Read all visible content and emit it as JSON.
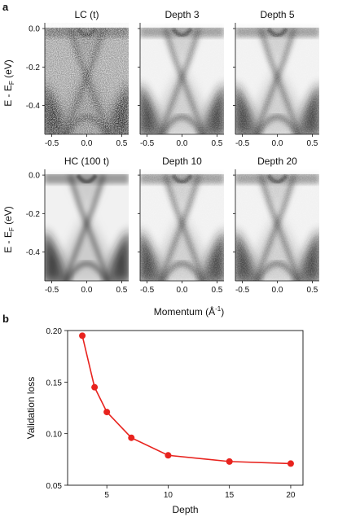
{
  "figure": {
    "panel_a_letter": "a",
    "panel_b_letter": "b",
    "shared_xlabel_main": "Momentum (Å",
    "shared_xlabel_sup": "-1",
    "shared_xlabel_end": ")",
    "ylabel_main": "E - E",
    "ylabel_sub": "F",
    "ylabel_unit": " (eV)"
  },
  "chart_data": [
    {
      "type": "heatmap",
      "panels": [
        {
          "title": "LC (t)",
          "noise": "high"
        },
        {
          "title": "Depth 3",
          "noise": "low"
        },
        {
          "title": "Depth 5",
          "noise": "low"
        },
        {
          "title": "HC (100 t)",
          "noise": "none"
        },
        {
          "title": "Depth 10",
          "noise": "low"
        },
        {
          "title": "Depth 20",
          "noise": "low"
        }
      ],
      "xlabel": "Momentum (Å^-1)",
      "ylabel": "E - E_F (eV)",
      "xlim": [
        -0.6,
        0.6
      ],
      "ylim": [
        -0.55,
        0.03
      ],
      "xticks": [
        -0.5,
        0.0,
        0.5
      ],
      "xtick_labels": [
        "-0.5",
        "0.0",
        "0.5"
      ],
      "yticks": [
        0.0,
        -0.2,
        -0.4
      ],
      "ytick_labels": [
        "0.0",
        "-0.2",
        "-0.4"
      ],
      "colormap": "grayscale"
    },
    {
      "type": "line",
      "x": [
        3,
        4,
        5,
        7,
        10,
        15,
        20
      ],
      "series": [
        {
          "values": [
            0.195,
            0.145,
            0.121,
            0.096,
            0.079,
            0.073,
            0.071
          ],
          "color": "#e8231e"
        }
      ],
      "xlabel": "Depth",
      "ylabel": "Validation loss",
      "xlim": [
        1.8,
        21
      ],
      "ylim": [
        0.05,
        0.2
      ],
      "xticks": [
        5,
        10,
        15,
        20
      ],
      "xtick_labels": [
        "5",
        "10",
        "15",
        "20"
      ],
      "yticks": [
        0.05,
        0.1,
        0.15,
        0.2
      ],
      "ytick_labels": [
        "0.05",
        "0.10",
        "0.15",
        "0.20"
      ],
      "grid": false
    }
  ]
}
